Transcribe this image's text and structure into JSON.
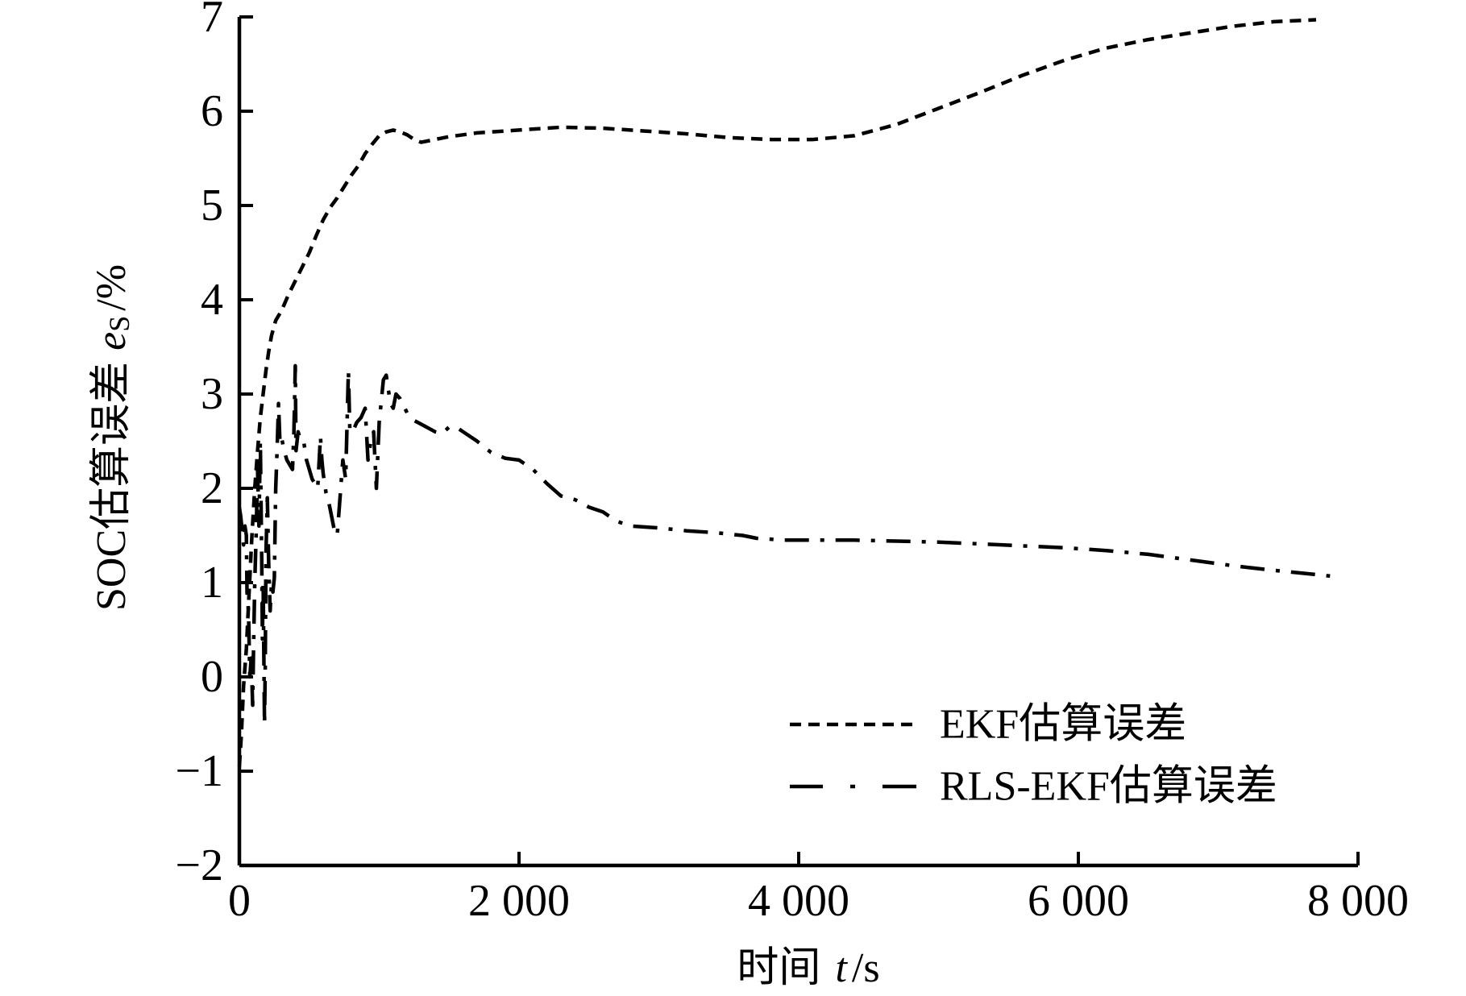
{
  "chart_data": {
    "type": "line",
    "xlabel": {
      "text": "时间",
      "symbol": "t",
      "unit": "/s"
    },
    "ylabel": {
      "text": "SOC估算误差",
      "symbol": "e",
      "subscript": "S",
      "unit": "/%"
    },
    "xlim": [
      0,
      8000
    ],
    "ylim": [
      -2,
      7
    ],
    "xticks": [
      0,
      2000,
      4000,
      6000,
      8000
    ],
    "xtick_labels": [
      "0",
      "2 000",
      "4 000",
      "6 000",
      "8 000"
    ],
    "yticks": [
      -2,
      -1,
      0,
      1,
      2,
      3,
      4,
      5,
      6,
      7
    ],
    "ytick_labels": [
      "−2",
      "−1",
      "0",
      "1",
      "2",
      "3",
      "4",
      "5",
      "6",
      "7"
    ],
    "grid": false,
    "legend": "lower-right",
    "series": [
      {
        "name": "EKF估算误差",
        "line_style": "dashed",
        "color": "#000000",
        "x": [
          0,
          15,
          30,
          50,
          70,
          90,
          110,
          130,
          150,
          170,
          190,
          210,
          230,
          260,
          300,
          350,
          400,
          450,
          500,
          550,
          600,
          650,
          700,
          750,
          800,
          850,
          900,
          950,
          1000,
          1050,
          1100,
          1150,
          1200,
          1250,
          1300,
          1400,
          1500,
          1700,
          2000,
          2300,
          2600,
          2900,
          3200,
          3500,
          3800,
          4100,
          4400,
          4700,
          5000,
          5300,
          5600,
          5900,
          6200,
          6500,
          6800,
          7100,
          7400,
          7700
        ],
        "y": [
          -0.95,
          -0.6,
          -0.1,
          0.3,
          0.9,
          1.5,
          2.0,
          2.4,
          2.75,
          3.0,
          3.25,
          3.45,
          3.62,
          3.78,
          3.88,
          4.05,
          4.2,
          4.35,
          4.5,
          4.68,
          4.85,
          4.98,
          5.08,
          5.2,
          5.32,
          5.42,
          5.55,
          5.65,
          5.74,
          5.78,
          5.8,
          5.78,
          5.75,
          5.7,
          5.67,
          5.7,
          5.73,
          5.77,
          5.8,
          5.83,
          5.82,
          5.79,
          5.76,
          5.72,
          5.7,
          5.7,
          5.74,
          5.86,
          6.03,
          6.2,
          6.38,
          6.54,
          6.67,
          6.76,
          6.83,
          6.9,
          6.95,
          6.97
        ]
      },
      {
        "name": "RLS-EKF估算误差",
        "line_style": "dash-dot",
        "color": "#000000",
        "x": [
          0,
          10,
          20,
          30,
          40,
          50,
          55,
          65,
          75,
          85,
          95,
          100,
          110,
          120,
          130,
          140,
          150,
          160,
          165,
          170,
          180,
          185,
          190,
          200,
          210,
          220,
          230,
          240,
          250,
          260,
          270,
          280,
          290,
          300,
          320,
          340,
          360,
          380,
          390,
          400,
          405,
          420,
          440,
          460,
          480,
          500,
          520,
          540,
          560,
          580,
          590,
          600,
          620,
          640,
          660,
          680,
          700,
          720,
          740,
          760,
          780,
          790,
          810,
          840,
          870,
          900,
          920,
          940,
          960,
          980,
          1000,
          1030,
          1050,
          1080,
          1100,
          1120,
          1150,
          1200,
          1250,
          1300,
          1400,
          1450,
          1500,
          1550,
          1600,
          1700,
          1800,
          1900,
          2000,
          2100,
          2200,
          2300,
          2400,
          2500,
          2600,
          2700,
          2800,
          3000,
          3200,
          3400,
          3600,
          3700,
          3900,
          4100,
          4400,
          4700,
          5000,
          5300,
          5600,
          5900,
          6200,
          6500,
          6800,
          7100,
          7400,
          7600,
          7800
        ],
        "y": [
          1.8,
          1.7,
          1.55,
          1.4,
          1.6,
          1.5,
          0.9,
          0.7,
          0.0,
          0.2,
          -0.3,
          0.2,
          1.0,
          1.5,
          2.2,
          1.6,
          2.5,
          1.2,
          0.4,
          1.0,
          -0.5,
          0.1,
          1.3,
          1.9,
          1.2,
          0.7,
          1.0,
          0.9,
          1.05,
          2.0,
          2.4,
          2.9,
          2.5,
          2.55,
          2.4,
          2.3,
          2.25,
          2.2,
          2.6,
          3.3,
          2.4,
          2.6,
          2.5,
          2.5,
          2.3,
          2.2,
          2.1,
          2.05,
          2.0,
          2.55,
          2.3,
          2.15,
          1.95,
          1.85,
          1.7,
          1.55,
          1.5,
          1.9,
          2.3,
          2.1,
          3.25,
          2.6,
          2.6,
          2.7,
          2.75,
          2.85,
          2.3,
          2.5,
          2.6,
          2.0,
          2.7,
          3.15,
          3.2,
          2.9,
          2.85,
          3.0,
          2.95,
          2.8,
          2.72,
          2.68,
          2.6,
          2.58,
          2.65,
          2.65,
          2.6,
          2.5,
          2.38,
          2.32,
          2.3,
          2.2,
          2.05,
          1.92,
          1.88,
          1.8,
          1.75,
          1.65,
          1.6,
          1.58,
          1.55,
          1.53,
          1.5,
          1.47,
          1.45,
          1.45,
          1.45,
          1.44,
          1.43,
          1.41,
          1.39,
          1.37,
          1.34,
          1.3,
          1.24,
          1.18,
          1.13,
          1.1,
          1.07
        ]
      }
    ]
  }
}
